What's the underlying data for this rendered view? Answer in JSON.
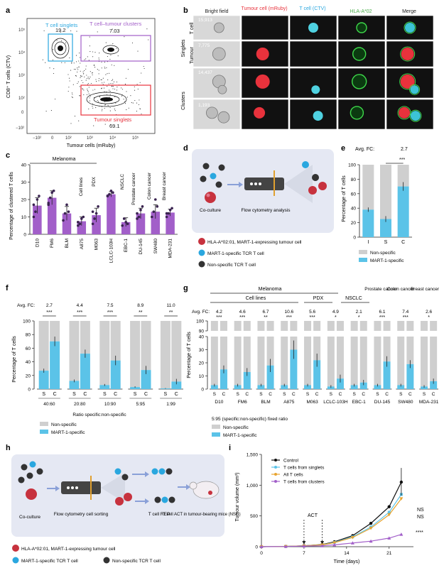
{
  "panels": {
    "a": "a",
    "b": "b",
    "c": "c",
    "d": "d",
    "e": "e",
    "f": "f",
    "g": "g",
    "h": "h",
    "i": "i"
  },
  "colors": {
    "purple": "#a25fc9",
    "blue": "#5bc3e8",
    "grey": "#cfcfcf",
    "red": "#e8323c",
    "cyan_box": "#2aa7df",
    "dark": "#333333"
  },
  "panel_a": {
    "xlabel": "Tumour cells (mRuby)",
    "ylabel": "CD8⁺ T cells (CTV)",
    "gates": [
      {
        "label": "T cell singlets",
        "value": "19.2"
      },
      {
        "label": "T cell–tumour clusters",
        "value": "7.03"
      },
      {
        "label": "Tumour singlets",
        "value": "69.1"
      }
    ],
    "xticks": [
      "−10²",
      "0",
      "10²",
      "10³",
      "10⁴",
      "10⁵"
    ],
    "yticks": [
      "−10²",
      "0",
      "10²",
      "10³",
      "10⁴",
      "10⁵"
    ]
  },
  "panel_b": {
    "columns": [
      "Bright field",
      "Tumour cell (mRuby)",
      "T cell (CTV)",
      "HLA-A*02",
      "Merge"
    ],
    "groups": [
      "Singlets",
      "Clusters"
    ],
    "rows": [
      {
        "label": "T cell",
        "count": "15,913"
      },
      {
        "label": "Tumour",
        "count": "7,775"
      },
      {
        "label": "",
        "count": "14,437"
      },
      {
        "label": "",
        "count": "1,193"
      }
    ]
  },
  "panel_c": {
    "ylabel": "Percentage of clustered T cells",
    "group_melanoma": "Melanoma",
    "sub_labels": [
      "Cell lines",
      "PDX",
      "NSCLC",
      "Prostate cancer",
      "Colon cancer",
      "Breast cancer"
    ],
    "yticks": [
      "0",
      "10",
      "20",
      "30",
      "40"
    ]
  },
  "panel_d": {
    "coculture": "Co-culture",
    "flow": "Flow cytometry analysis",
    "legend": [
      "HLA-A*02:01, MART-1-expressing tumour cell",
      "MART-1-specific TCR T cell",
      "Non-specific TCR T cell"
    ]
  },
  "panel_e": {
    "avg_fc_label": "Avg. FC:",
    "avg_fc": "2.7",
    "sig": "***",
    "ylabel": "Percentage of T cells",
    "legend": [
      "Non-specific",
      "MART-1-specific"
    ]
  },
  "panel_f": {
    "avg_fc_label": "Avg. FC:",
    "ylabel": "Percentage of T cells",
    "xtitle": "Ratio specific:non-specific",
    "legend": [
      "Non-specific",
      "MART-1-specific"
    ]
  },
  "panel_g": {
    "avg_fc_label": "Avg. FC:",
    "ylabel": "Percentage of T cells",
    "header_melanoma": "Melanoma",
    "header_celllines": "Cell lines",
    "header_pdx": "PDX",
    "header_nsclc": "NSCLC",
    "header_prostate": "Prostate cancer",
    "header_colon": "Colon cancer",
    "header_breast": "Breast cancer",
    "fixed_ratio": "5:95 (specific:non-specific) fixed ratio",
    "legend": [
      "Non-specific",
      "MART-1-specific"
    ]
  },
  "panel_h": {
    "steps": [
      "Co-culture",
      "Flow cytometry cell sorting",
      "T cell REP",
      "T cell ACT in tumour-bearing mice (NSG)"
    ],
    "legend": [
      "HLA-A*02:01, MART-1-expressing tumour cell",
      "MART-1-specific TCR T cell",
      "Non-specific TCR T cell"
    ]
  },
  "panel_i": {
    "xlabel": "Time (days)",
    "ylabel": "Tumour volume (mm³)",
    "act_label": "ACT",
    "annotations": [
      "NS",
      "NS",
      "****"
    ]
  },
  "chart_data": [
    {
      "panel": "c",
      "type": "bar",
      "categories": [
        "D10",
        "FM6",
        "BLM",
        "A875",
        "M063",
        "LCLC-103H",
        "EBC-1",
        "DU-145",
        "SW480",
        "MDA-231"
      ],
      "values": [
        16.5,
        21,
        12,
        7.5,
        11,
        23,
        7,
        12,
        13,
        12.5
      ],
      "errors": [
        4.5,
        4,
        4,
        2.5,
        4,
        1.5,
        2.5,
        3,
        4,
        2
      ],
      "points": [
        [
          10,
          13,
          20,
          22,
          17
        ],
        [
          18,
          21,
          24,
          25,
          17
        ],
        [
          8,
          12,
          17,
          13
        ],
        [
          5,
          6,
          9,
          10,
          7
        ],
        [
          6,
          9,
          12,
          16,
          13
        ],
        [
          22,
          23,
          25,
          24,
          22
        ],
        [
          5,
          9,
          7,
          6
        ],
        [
          9,
          10,
          14,
          16,
          12
        ],
        [
          10,
          13,
          20,
          16
        ],
        [
          10,
          12,
          14,
          15,
          12
        ]
      ],
      "ylim": [
        0,
        40
      ]
    },
    {
      "panel": "e",
      "type": "bar",
      "categories": [
        "I",
        "S",
        "C"
      ],
      "stacked": true,
      "specific": [
        38,
        25,
        70
      ],
      "specific_err": [
        3,
        4,
        6
      ],
      "ylim": [
        0,
        100
      ],
      "yticks": [
        0,
        20,
        40,
        60,
        80,
        100
      ]
    },
    {
      "panel": "f",
      "type": "bar",
      "stacked": true,
      "ratios": [
        "40:60",
        "20:80",
        "10:90",
        "5:95",
        "1:99"
      ],
      "avg_fc": [
        "2.7",
        "4.4",
        "7.5",
        "8.9",
        "11.0"
      ],
      "sig": [
        "***",
        "***",
        "***",
        "**",
        "**"
      ],
      "S": [
        27,
        12,
        6,
        3,
        1
      ],
      "C": [
        70,
        52,
        42,
        28,
        11
      ],
      "S_err": [
        3,
        2,
        1.5,
        1,
        0.5
      ],
      "C_err": [
        7,
        6,
        7,
        6,
        4
      ],
      "ylim": [
        0,
        100
      ],
      "yticks": [
        0,
        20,
        40,
        60,
        80,
        100
      ]
    },
    {
      "panel": "g",
      "type": "bar",
      "stacked": true,
      "categories": [
        "D10",
        "FM6",
        "BLM",
        "A875",
        "M063",
        "LCLC-103H",
        "EBC-1",
        "DU-145",
        "SW480",
        "MDA-231"
      ],
      "avg_fc": [
        "4.2",
        "4.6",
        "6.7",
        "10.6",
        "5.6",
        "4.9",
        "2.1",
        "6.1",
        "7.4",
        "2.6"
      ],
      "sig": [
        "***",
        "***",
        "**",
        "***",
        "***",
        "*",
        "*",
        "***",
        "***",
        "*"
      ],
      "S": [
        3,
        3,
        3,
        3,
        3,
        2,
        3,
        3,
        3,
        2
      ],
      "C": [
        15,
        13,
        18,
        30,
        22,
        8,
        5,
        21,
        19,
        6
      ],
      "S_err": [
        1,
        1,
        1,
        1,
        1,
        1,
        1,
        1,
        1,
        1
      ],
      "C_err": [
        3,
        3,
        5,
        7,
        5,
        3,
        2,
        4,
        3,
        2
      ],
      "ylim": [
        0,
        100
      ],
      "yticks": [
        0,
        10,
        20,
        30,
        40,
        90,
        100
      ]
    },
    {
      "panel": "i",
      "type": "line",
      "x": [
        0,
        4,
        7,
        10,
        12,
        15,
        18,
        21,
        23
      ],
      "series": [
        {
          "name": "Control",
          "values": [
            0,
            5,
            15,
            35,
            80,
            180,
            380,
            650,
            1050
          ]
        },
        {
          "name": "T cells from singlets",
          "values": [
            0,
            5,
            15,
            30,
            70,
            160,
            320,
            560,
            850
          ]
        },
        {
          "name": "All T cells",
          "values": [
            0,
            5,
            15,
            30,
            65,
            150,
            300,
            520,
            780
          ]
        },
        {
          "name": "T cells from clusters",
          "values": [
            0,
            4,
            10,
            15,
            30,
            60,
            90,
            140,
            200
          ]
        }
      ],
      "ylim": [
        0,
        1500
      ],
      "xlim": [
        0,
        25
      ],
      "yticks": [
        0,
        500,
        1000,
        1500
      ],
      "xticks": [
        0,
        7,
        14,
        21
      ]
    }
  ]
}
